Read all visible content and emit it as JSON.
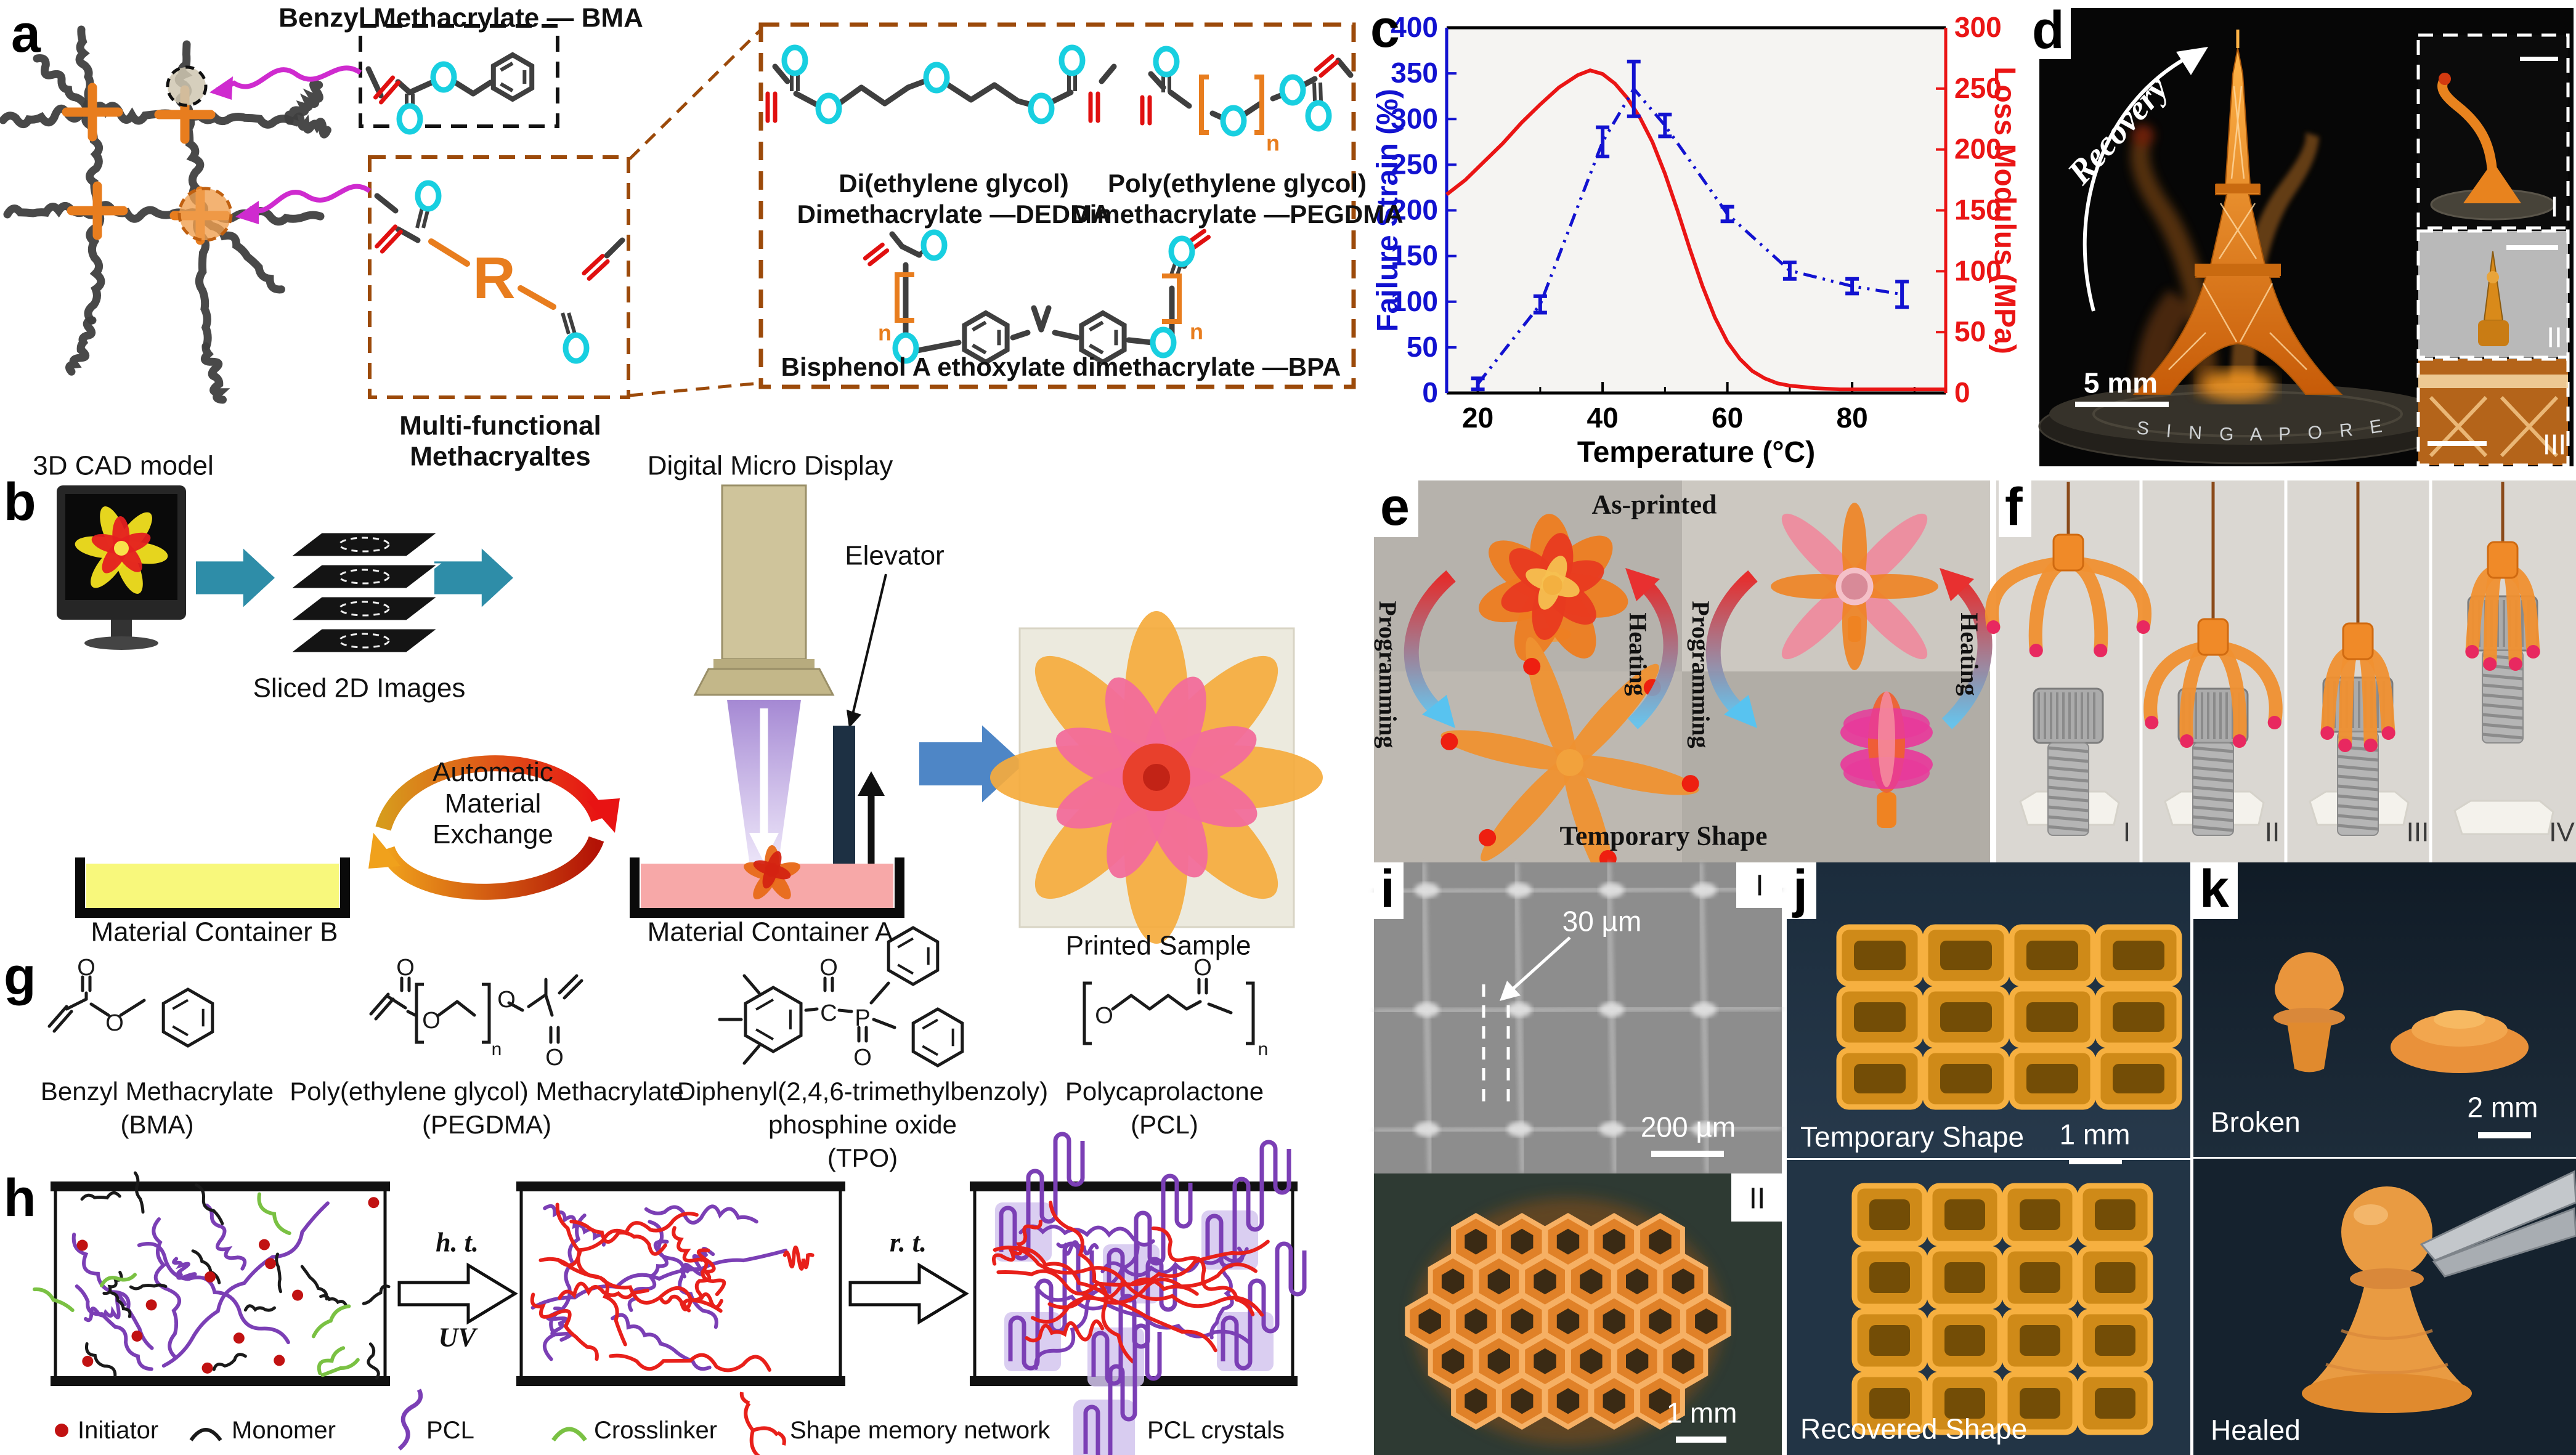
{
  "panels": {
    "a": "a",
    "b": "b",
    "c": "c",
    "d": "d",
    "e": "e",
    "f": "f",
    "g": "g",
    "h": "h",
    "i": "i",
    "j": "j",
    "k": "k"
  },
  "atoms": {
    "O": "O",
    "C": "C",
    "P": "P",
    "n": "n",
    "R": "R"
  },
  "panel_a": {
    "bma_title": "Benzyl Methacrylate — BMA",
    "multi_line1": "Multi-functional",
    "multi_line2": "Methacryaltes",
    "dedma_line1": "Di(ethylene glycol)",
    "dedma_line2": "Dimethacrylate —DEDMA",
    "pegdma_line1": "Poly(ethylene glycol)",
    "pegdma_line2": "Dimethacrylate —PEGDMA",
    "bpa_label": "Bisphenol A ethoxylate dimethacrylate —BPA"
  },
  "panel_b": {
    "cad": "3D CAD model",
    "sliced": "Sliced 2D Images",
    "dmd": "Digital Micro Display",
    "elevator": "Elevator",
    "amx1": "Automatic",
    "amx2": "Material",
    "amx3": "Exchange",
    "container_b": "Material Container B",
    "container_a": "Material Container A",
    "printed": "Printed Sample"
  },
  "chart_data": {
    "type": "line",
    "title": "",
    "xlabel": "Temperature (°C)",
    "ylabel_left": "Failure Strain (%)",
    "ylabel_right": "Loss Modulus (MPa)",
    "xlim": [
      15,
      95
    ],
    "ylim_left": [
      0,
      400
    ],
    "ylim_right": [
      0,
      300
    ],
    "x_major_ticks": [
      20,
      40,
      60,
      80
    ],
    "x_minor_ticks": [
      30,
      50,
      70,
      90
    ],
    "y_left_ticks": [
      0,
      50,
      100,
      150,
      200,
      250,
      300,
      350,
      400
    ],
    "y_right_ticks": [
      0,
      50,
      100,
      150,
      200,
      250,
      300
    ],
    "grid": false,
    "legend_position": "none",
    "series": [
      {
        "name": "Failure Strain",
        "axis": "left",
        "color": "#1212d0",
        "style": "dash-dot-errorbar",
        "x": [
          20,
          30,
          40,
          45,
          50,
          60,
          70,
          80,
          88
        ],
        "y": [
          10,
          97,
          275,
          333,
          293,
          196,
          134,
          117,
          108
        ],
        "yerr": [
          6,
          9,
          16,
          30,
          12,
          8,
          9,
          8,
          14
        ]
      },
      {
        "name": "Loss Modulus",
        "axis": "right",
        "color": "#ea1515",
        "style": "solid",
        "x": [
          15,
          18,
          21,
          24,
          27,
          30,
          33,
          36,
          38,
          40,
          42,
          44,
          46,
          48,
          50,
          52,
          54,
          56,
          58,
          60,
          62,
          64,
          66,
          68,
          70,
          74,
          78,
          84,
          90,
          95
        ],
        "y": [
          163,
          175,
          190,
          205,
          222,
          237,
          251,
          261,
          265,
          262,
          254,
          242,
          226,
          206,
          180,
          150,
          118,
          88,
          62,
          42,
          28,
          18,
          12,
          8,
          6,
          4,
          3,
          3,
          3,
          3
        ]
      }
    ]
  },
  "panel_d": {
    "recovery": "Recovery",
    "scale": "5 mm",
    "coin": "S I N G A P O R E",
    "i1": "I",
    "i2": "II",
    "i3": "III"
  },
  "panel_e": {
    "as_printed": "As-printed",
    "temporary": "Temporary Shape",
    "programming": "Programming",
    "heating": "Heating"
  },
  "panel_f": {
    "n1": "I",
    "n2": "II",
    "n3": "III",
    "n4": "IV"
  },
  "panel_g": {
    "bma1": "Benzyl Methacrylate",
    "bma2": "(BMA)",
    "pegdma1": "Poly(ethylene glycol) Methacrylate",
    "pegdma2": "(PEGDMA)",
    "tpo1": "Diphenyl(2,4,6-trimethylbenzoly)",
    "tpo2": "phosphine oxide",
    "tpo3": "(TPO)",
    "pcl1": "Polycaprolactone",
    "pcl2": "(PCL)"
  },
  "panel_h": {
    "ht": "h. t.",
    "uv": "UV",
    "rt": "r. t.",
    "legend": [
      {
        "label": "Initiator"
      },
      {
        "label": "Monomer"
      },
      {
        "label": "PCL"
      },
      {
        "label": "Crosslinker"
      },
      {
        "label": "Shape memory network"
      },
      {
        "label": "PCL crystals"
      }
    ]
  },
  "panel_i": {
    "anno": "30 µm",
    "scale_top": "200 µm",
    "n1": "I",
    "n2": "II",
    "scale_bottom": "1 mm"
  },
  "panel_j": {
    "top": "Temporary Shape",
    "scale": "1 mm",
    "bottom": "Recovered Shape"
  },
  "panel_k": {
    "top": "Broken",
    "scale": "2 mm",
    "bottom": "Healed"
  },
  "colors": {
    "crosslink_orange": "#e87d1e",
    "strand_gray": "#3f3f3f",
    "magenta": "#cf2bcf",
    "cyan_oxygen": "#18cfe0",
    "red_bond": "#e01010",
    "blue_axis": "#1212d0",
    "red_axis": "#ea1515"
  }
}
